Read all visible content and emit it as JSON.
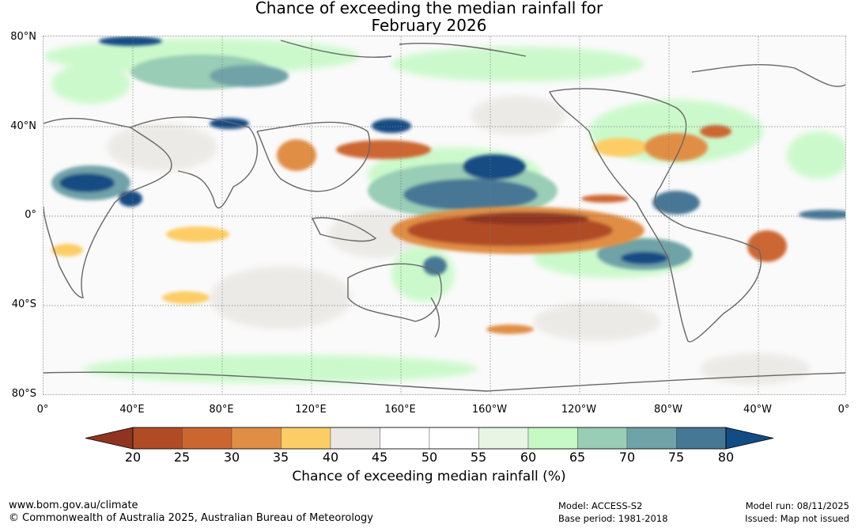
{
  "title": {
    "line1": "Chance of exceeding the median rainfall for",
    "line2": "February 2026"
  },
  "lat_labels": [
    "80°N",
    "40°N",
    "0°",
    "40°S",
    "80°S"
  ],
  "lon_labels": [
    "0°",
    "40°E",
    "80°E",
    "120°E",
    "160°E",
    "160°W",
    "120°W",
    "80°W",
    "40°W",
    "0°"
  ],
  "colorbar": {
    "ticks": [
      "20",
      "25",
      "30",
      "35",
      "40",
      "45",
      "50",
      "55",
      "60",
      "65",
      "70",
      "75",
      "80"
    ],
    "colors": [
      "#8f3420",
      "#b14b26",
      "#cc6631",
      "#e08e45",
      "#fccd66",
      "#e9e8e4",
      "#ffffff",
      "#ffffff",
      "#e8f5e4",
      "#c6f9c6",
      "#99cdb5",
      "#6fa3a8",
      "#467795",
      "#124c84"
    ],
    "label": "Chance of exceeding median rainfall (%)"
  },
  "footer": {
    "url": "www.bom.gov.au/climate",
    "copyright": "© Commonwealth of Australia 2025, Australian Bureau of Meteorology",
    "model": "Model: ACCESS-S2",
    "base_period": "Base period: 1981-2018",
    "model_run": "Model run: 08/11/2025",
    "issued": "Issued: Map not issued"
  }
}
